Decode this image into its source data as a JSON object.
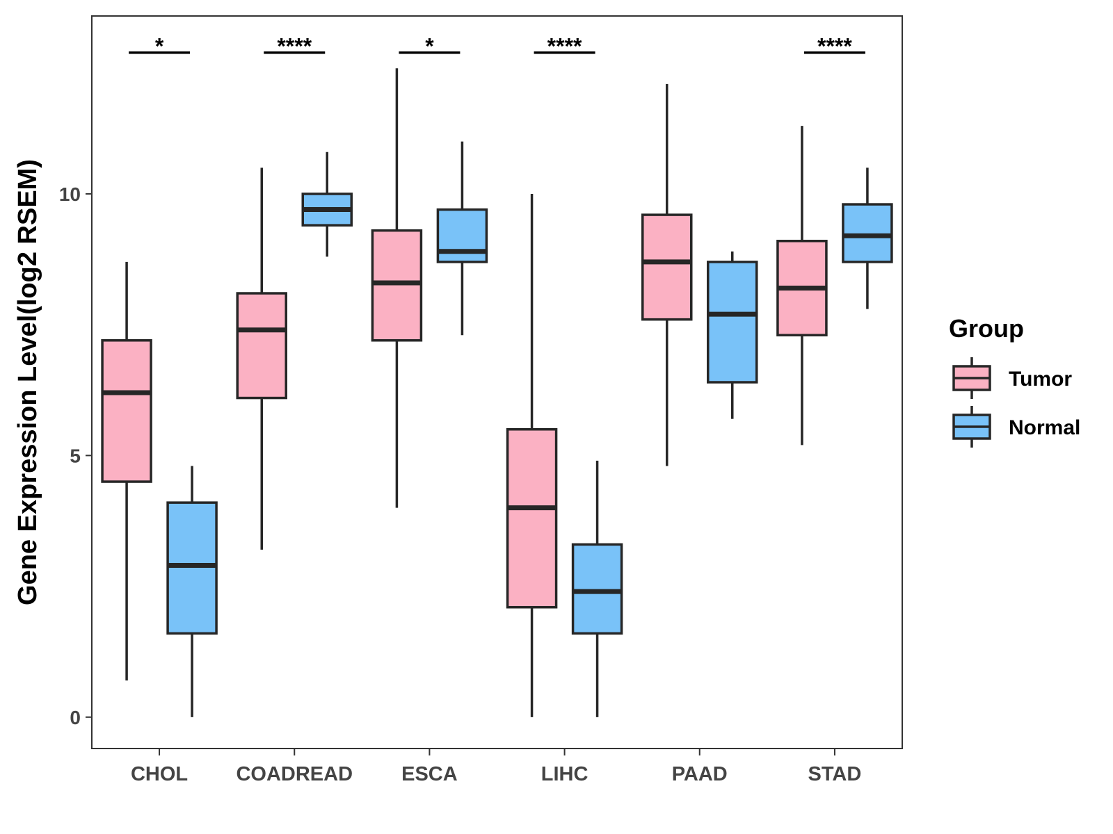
{
  "chart_data": {
    "type": "boxplot",
    "title": "",
    "xlabel": "",
    "ylabel": "Gene Expression Level(log2 RSEM)",
    "ylim": [
      -0.6,
      13.4
    ],
    "yticks": [
      0,
      5,
      10
    ],
    "grid": false,
    "categories": [
      "CHOL",
      "COADREAD",
      "ESCA",
      "LIHC",
      "PAAD",
      "STAD"
    ],
    "colors": {
      "Tumor": "#FBB1C3",
      "Normal": "#79C2F8",
      "stroke": "#262626"
    },
    "legend": {
      "title": "Group",
      "position": "right",
      "entries": [
        "Tumor",
        "Normal"
      ]
    },
    "series": [
      {
        "name": "Tumor",
        "boxes": [
          {
            "min": 0.7,
            "q1": 4.5,
            "median": 6.2,
            "q3": 7.2,
            "max": 8.7
          },
          {
            "min": 3.2,
            "q1": 6.1,
            "median": 7.4,
            "q3": 8.1,
            "max": 10.5
          },
          {
            "min": 4.0,
            "q1": 7.2,
            "median": 8.3,
            "q3": 9.3,
            "max": 12.4
          },
          {
            "min": 0.0,
            "q1": 2.1,
            "median": 4.0,
            "q3": 5.5,
            "max": 10.0
          },
          {
            "min": 4.8,
            "q1": 7.6,
            "median": 8.7,
            "q3": 9.6,
            "max": 12.1
          },
          {
            "min": 5.2,
            "q1": 7.3,
            "median": 8.2,
            "q3": 9.1,
            "max": 11.3
          }
        ]
      },
      {
        "name": "Normal",
        "boxes": [
          {
            "min": 0.0,
            "q1": 1.6,
            "median": 2.9,
            "q3": 4.1,
            "max": 4.8
          },
          {
            "min": 8.8,
            "q1": 9.4,
            "median": 9.7,
            "q3": 10.0,
            "max": 10.8
          },
          {
            "min": 7.3,
            "q1": 8.7,
            "median": 8.9,
            "q3": 9.7,
            "max": 11.0
          },
          {
            "min": 0.0,
            "q1": 1.6,
            "median": 2.4,
            "q3": 3.3,
            "max": 4.9
          },
          {
            "min": 5.7,
            "q1": 6.4,
            "median": 7.7,
            "q3": 8.7,
            "max": 8.9
          },
          {
            "min": 7.8,
            "q1": 8.7,
            "median": 9.2,
            "q3": 9.8,
            "max": 10.5
          }
        ]
      }
    ],
    "significance": [
      {
        "category": "CHOL",
        "label": "*",
        "y": 12.7
      },
      {
        "category": "COADREAD",
        "label": "****",
        "y": 12.7
      },
      {
        "category": "ESCA",
        "label": "*",
        "y": 12.7
      },
      {
        "category": "LIHC",
        "label": "****",
        "y": 12.7
      },
      {
        "category": "STAD",
        "label": "****",
        "y": 12.7
      }
    ]
  }
}
